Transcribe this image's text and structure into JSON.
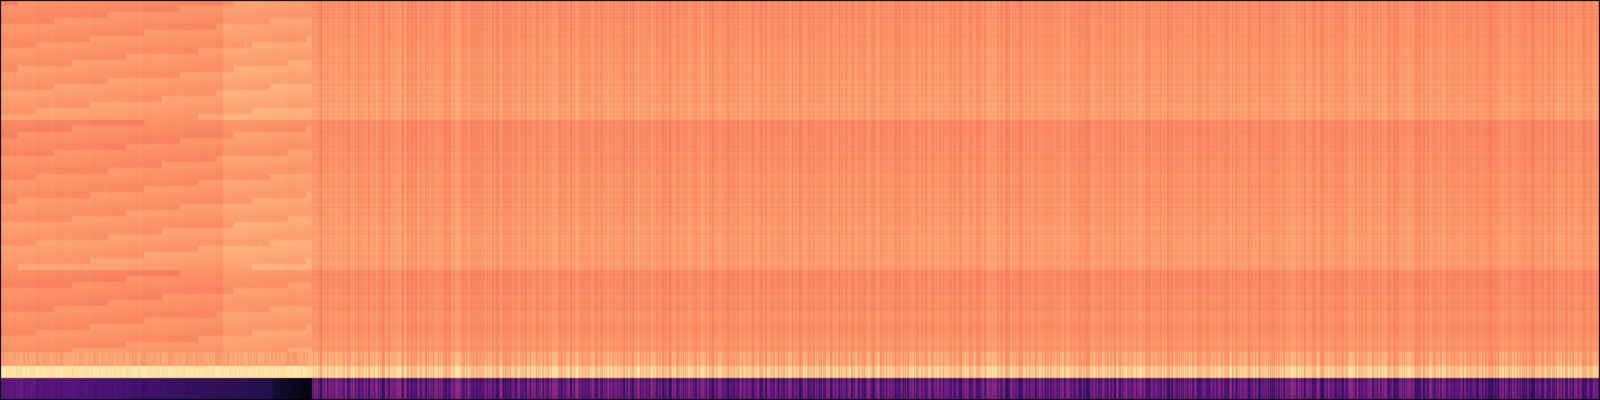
{
  "image": {
    "subject": "spectrogram-heatmap",
    "colormap": "magma",
    "palette": {
      "background": "#000000",
      "dominant": "#f2705e",
      "warm_light": "#f98f66",
      "warm_dark": "#e4586b",
      "highlight": "#fde4a8",
      "deep_purple": "#2b1256",
      "mid_purple": "#6b2a86"
    },
    "regions": {
      "left_segment_fraction": 0.195,
      "top_band_intensity": 0.78,
      "bottom_band_intensity": 0.12,
      "bright_stripe_intensity": 0.97
    }
  }
}
